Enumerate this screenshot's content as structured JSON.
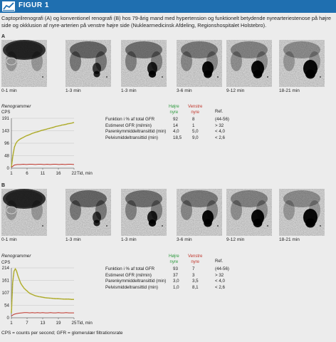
{
  "figure": {
    "label": "FIGUR 1",
    "caption": "Captoprilrenografi (A) og konventionel renografi (B) hos 79-årig mand med hypertension og funktionelt betydende nyrearteriestenose på højre side og okklusion af nyre-arterien på venstre højre side (Nuklearmedicinsk Afdeling, Regionshospitalet Holstebro).",
    "footnote": "CPS = counts per second; GFR = glomerulær filtrationsrate"
  },
  "panels": [
    {
      "id": "A",
      "scans": [
        "0-1 min",
        "1-3 min",
        "1-3 min",
        "3-6 min",
        "9-12 min",
        "18-21 min"
      ],
      "renogram_title": "Renogrammer",
      "cps_label": "CPS",
      "chart_data": {
        "type": "line",
        "yticks": [
          "191",
          "143",
          "96",
          "48",
          "0"
        ],
        "xticks": [
          "1",
          "6",
          "11",
          "16",
          "22"
        ],
        "xlabel": "Tid, min",
        "ylim": [
          0,
          191
        ],
        "xlim": [
          1,
          22
        ],
        "series": [
          {
            "color": "#c8c040",
            "x": [
              1,
              1.5,
              2,
              2.5,
              3,
              3.5,
              4,
              5,
              6,
              7,
              8,
              9,
              10,
              11,
              12,
              13,
              14,
              15,
              16,
              17,
              18,
              19,
              20,
              21,
              22
            ],
            "values": [
              5,
              48,
              80,
              95,
              103,
              108,
              112,
              118,
              124,
              128,
              133,
              137,
              140,
              144,
              147,
              150,
              153,
              156,
              160,
              162,
              165,
              167,
              170,
              172,
              175
            ]
          },
          {
            "color": "#c0352b",
            "x": [
              1,
              2,
              3,
              4,
              5,
              6,
              7,
              8,
              9,
              10,
              11,
              12,
              13,
              14,
              15,
              16,
              17,
              18,
              19,
              20,
              21,
              22
            ],
            "values": [
              3,
              12,
              14,
              14,
              15,
              14,
              15,
              15,
              14,
              15,
              15,
              14,
              15,
              14,
              15,
              15,
              14,
              15,
              14,
              15,
              15,
              14
            ]
          }
        ]
      },
      "table": {
        "col_right": "Højre nyre",
        "col_left": "Venstre nyre",
        "col_ref": "Ref.",
        "rows": [
          {
            "label": "Funktion i % af total GFR",
            "right": "92",
            "left": "8",
            "ref": "(44-56)"
          },
          {
            "label": "Estimeret GFR (ml/min)",
            "right": "14",
            "left": "1",
            "ref": "> 32"
          },
          {
            "label": "Parenkymmiddeltransittid (min)",
            "right": "4,0",
            "left": "5,0",
            "ref": "< 4,0"
          },
          {
            "label": "Pelvismiddeltransittid (min)",
            "right": "18,5",
            "left": "9,0",
            "ref": "< 2,6"
          }
        ]
      }
    },
    {
      "id": "B",
      "scans": [
        "0-1 min",
        "1-3 min",
        "1-3 min",
        "3-6 min",
        "9-12 min",
        "18-21 min"
      ],
      "renogram_title": "Renogrammer",
      "cps_label": "CPS",
      "chart_data": {
        "type": "line",
        "yticks": [
          "214",
          "161",
          "107",
          "54",
          "0"
        ],
        "xticks": [
          "1",
          "7",
          "13",
          "19",
          "25"
        ],
        "xlabel": "Tid, min",
        "ylim": [
          0,
          214
        ],
        "xlim": [
          1,
          25
        ],
        "series": [
          {
            "color": "#c8c040",
            "x": [
              1,
              1.5,
              2,
              2.5,
              3,
              3.5,
              4,
              4.5,
              5,
              6,
              7,
              8,
              9,
              10,
              11,
              12,
              13,
              14,
              15,
              16,
              17,
              18,
              19,
              20,
              21,
              22,
              23,
              24,
              25
            ],
            "values": [
              20,
              150,
              200,
              210,
              200,
              180,
              165,
              150,
              140,
              125,
              115,
              105,
              100,
              95,
              92,
              90,
              88,
              86,
              85,
              84,
              83,
              82,
              82,
              81,
              80,
              80,
              80,
              79,
              79
            ]
          },
          {
            "color": "#c0352b",
            "x": [
              1,
              2,
              3,
              4,
              5,
              6,
              7,
              8,
              9,
              10,
              11,
              12,
              13,
              14,
              15,
              16,
              17,
              18,
              19,
              20,
              21,
              22,
              23,
              24,
              25
            ],
            "values": [
              8,
              15,
              18,
              20,
              21,
              22,
              22,
              21,
              22,
              21,
              22,
              21,
              22,
              21,
              21,
              22,
              21,
              21,
              22,
              21,
              21,
              22,
              21,
              21,
              21
            ]
          }
        ]
      },
      "table": {
        "col_right": "Højre nyre",
        "col_left": "Venstre nyre",
        "col_ref": "Ref.",
        "rows": [
          {
            "label": "Funktion i % af total GFR",
            "right": "93",
            "left": "7",
            "ref": "(44-56)"
          },
          {
            "label": "Estimeret GFR (ml/min)",
            "right": "37",
            "left": "3",
            "ref": "> 32"
          },
          {
            "label": "Parenkymmiddeltransittid (min)",
            "right": "3,0",
            "left": "3,5",
            "ref": "< 4,0"
          },
          {
            "label": "Pelvismiddeltransittid (min)",
            "right": "1,0",
            "left": "8,1",
            "ref": "< 2,6"
          }
        ]
      }
    }
  ],
  "colors": {
    "header_blue": "#1f6fb0",
    "right_kidney_green": "#2e9a3e",
    "left_kidney_red": "#c0352b",
    "curve_yellow": "#c8c040"
  }
}
